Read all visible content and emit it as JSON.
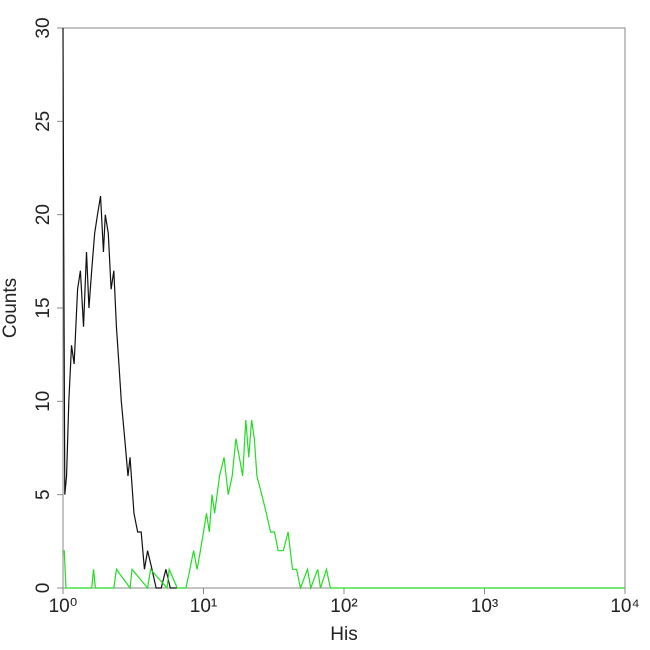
{
  "chart_data": {
    "type": "line",
    "x_label": "His",
    "y_label": "Counts",
    "log_x": true,
    "xlim": [
      1,
      10000
    ],
    "xticks": [
      {
        "value": 1,
        "label": "10⁰"
      },
      {
        "value": 10,
        "label": "10¹"
      },
      {
        "value": 100,
        "label": "10²"
      },
      {
        "value": 1000,
        "label": "10³"
      },
      {
        "value": 10000,
        "label": "10⁴"
      }
    ],
    "ylim": [
      0,
      30
    ],
    "yticks": [
      0,
      5,
      10,
      15,
      20,
      25,
      30
    ],
    "series": [
      {
        "color": "#111111",
        "x": [
          1,
          1.01,
          1.03,
          1.06,
          1.1,
          1.15,
          1.2,
          1.27,
          1.33,
          1.4,
          1.47,
          1.53,
          1.6,
          1.68,
          1.76,
          1.85,
          1.94,
          2.0,
          2.1,
          2.2,
          2.3,
          2.4,
          2.5,
          2.6,
          2.75,
          2.9,
          3.0,
          3.2,
          3.4,
          3.6,
          3.8,
          4.0,
          4.3,
          4.6,
          5.0,
          5.4,
          5.8,
          6.5
        ],
        "values": [
          30,
          20,
          5,
          6,
          10,
          13,
          12,
          16,
          17,
          14,
          18,
          15,
          17,
          19,
          20,
          21,
          18,
          20,
          19,
          16,
          17,
          14,
          12,
          10,
          8,
          6,
          7,
          4,
          3,
          3,
          1,
          2,
          1,
          0,
          0,
          1,
          0,
          0
        ]
      },
      {
        "color": "#22dd22",
        "x": [
          1,
          1.02,
          1.05,
          1.6,
          1.65,
          1.7,
          2.3,
          2.4,
          3.0,
          3.1,
          4.0,
          4.2,
          5.5,
          5.7,
          6.5,
          7.5,
          8,
          8.5,
          9,
          9.5,
          10,
          10.5,
          11,
          11.5,
          12,
          13,
          14,
          15,
          16,
          17,
          18,
          19,
          20,
          21,
          22,
          23,
          24,
          26,
          28,
          30,
          32,
          34,
          37,
          40,
          43,
          46,
          49,
          55,
          58,
          65,
          68,
          75,
          80,
          10000
        ],
        "values": [
          2,
          2,
          0,
          0,
          1,
          0,
          0,
          1,
          0,
          1,
          0,
          1,
          0,
          1,
          0,
          0,
          1,
          2,
          1,
          2,
          3,
          4,
          3,
          5,
          4,
          6,
          7,
          5,
          6,
          8,
          7,
          6,
          9,
          7,
          9,
          8,
          6,
          5,
          4,
          3,
          3,
          2,
          2,
          3,
          1,
          1,
          0,
          1,
          0,
          1,
          0,
          1,
          0,
          0
        ]
      }
    ]
  }
}
